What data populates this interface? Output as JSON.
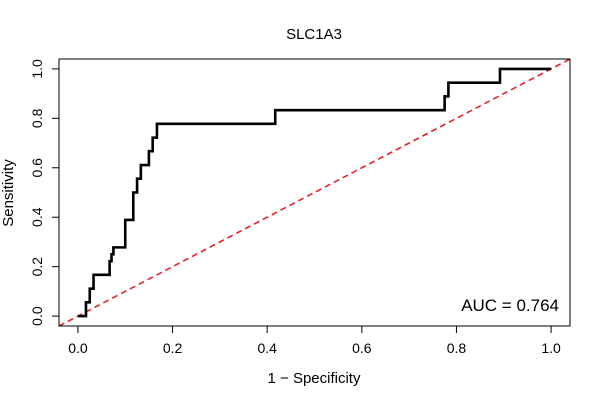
{
  "chart_data": {
    "type": "line",
    "title": "SLC1A3",
    "xlabel": "1 − Specificity",
    "ylabel": "Sensitivity",
    "xlim": [
      -0.04,
      1.04
    ],
    "ylim": [
      -0.04,
      1.04
    ],
    "x_ticks": [
      0.0,
      0.2,
      0.4,
      0.6,
      0.8,
      1.0
    ],
    "x_tick_labels": [
      "0.0",
      "0.2",
      "0.4",
      "0.6",
      "0.8",
      "1.0"
    ],
    "y_ticks": [
      0.0,
      0.2,
      0.4,
      0.6,
      0.8,
      1.0
    ],
    "y_tick_labels": [
      "0.0",
      "0.2",
      "0.4",
      "0.6",
      "0.8",
      "1.0"
    ],
    "grid": false,
    "annotation": "AUC = 0.764",
    "series": [
      {
        "name": "ROC",
        "color": "#000000",
        "style": "solid",
        "x": [
          0.0,
          0.017,
          0.017,
          0.025,
          0.025,
          0.033,
          0.033,
          0.067,
          0.067,
          0.071,
          0.071,
          0.075,
          0.075,
          0.1,
          0.1,
          0.117,
          0.117,
          0.125,
          0.125,
          0.133,
          0.133,
          0.15,
          0.15,
          0.158,
          0.158,
          0.167,
          0.167,
          0.417,
          0.417,
          0.775,
          0.775,
          0.783,
          0.783,
          0.892,
          0.892,
          1.0
        ],
        "y": [
          0.0,
          0.0,
          0.056,
          0.056,
          0.111,
          0.111,
          0.167,
          0.167,
          0.222,
          0.222,
          0.25,
          0.25,
          0.278,
          0.278,
          0.389,
          0.389,
          0.5,
          0.5,
          0.556,
          0.556,
          0.611,
          0.611,
          0.667,
          0.667,
          0.722,
          0.722,
          0.778,
          0.778,
          0.833,
          0.833,
          0.889,
          0.889,
          0.944,
          0.944,
          1.0,
          1.0
        ]
      },
      {
        "name": "reference",
        "color": "#e8202a",
        "style": "dashed",
        "x": [
          -0.04,
          1.04
        ],
        "y": [
          -0.04,
          1.04
        ]
      }
    ]
  }
}
